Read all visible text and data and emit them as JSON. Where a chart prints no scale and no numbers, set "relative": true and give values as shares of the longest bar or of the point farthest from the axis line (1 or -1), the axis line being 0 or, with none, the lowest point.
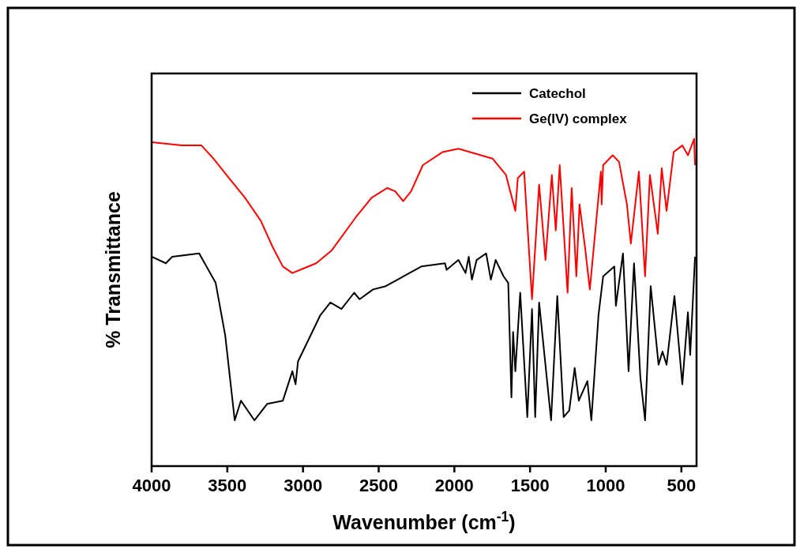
{
  "chart_data": {
    "type": "line",
    "relative": true,
    "xlabel": "Wavenumber (cm$^{-1}$)",
    "ylabel": "% Transmittance",
    "xlim": [
      4000,
      400
    ],
    "xticks": [
      4000,
      3500,
      3000,
      2500,
      2000,
      1500,
      1000,
      500
    ],
    "legend": "top right",
    "line_style": "solid",
    "series": [
      {
        "name": "Catechol",
        "color": "#000000",
        "x": [
          4000,
          3906,
          3864,
          3686,
          3577,
          3514,
          3451,
          3410,
          3321,
          3237,
          3133,
          3070,
          3049,
          3033,
          2939,
          2887,
          2819,
          2746,
          2662,
          2626,
          2537,
          2453,
          2297,
          2218,
          2062,
          2051,
          1973,
          1926,
          1905,
          1884,
          1853,
          1790,
          1759,
          1727,
          1675,
          1644,
          1623,
          1612,
          1597,
          1565,
          1518,
          1487,
          1466,
          1440,
          1361,
          1320,
          1278,
          1241,
          1205,
          1178,
          1121,
          1095,
          1048,
          1017,
          943,
          933,
          886,
          849,
          813,
          771,
          740,
          703,
          651,
          625,
          598,
          546,
          494,
          457,
          442,
          410
        ],
        "values": [
          0.64,
          0.62,
          0.64,
          0.65,
          0.56,
          0.4,
          0.14,
          0.2,
          0.14,
          0.19,
          0.2,
          0.29,
          0.25,
          0.32,
          0.41,
          0.46,
          0.5,
          0.48,
          0.53,
          0.51,
          0.54,
          0.55,
          0.59,
          0.61,
          0.62,
          0.6,
          0.63,
          0.59,
          0.64,
          0.57,
          0.63,
          0.65,
          0.57,
          0.63,
          0.58,
          0.56,
          0.21,
          0.41,
          0.29,
          0.53,
          0.15,
          0.48,
          0.15,
          0.5,
          0.14,
          0.52,
          0.15,
          0.17,
          0.3,
          0.2,
          0.26,
          0.14,
          0.46,
          0.58,
          0.61,
          0.49,
          0.65,
          0.29,
          0.62,
          0.27,
          0.14,
          0.55,
          0.31,
          0.35,
          0.31,
          0.52,
          0.25,
          0.47,
          0.34,
          0.64
        ]
      },
      {
        "name": "Ge(IV) complex",
        "color": "#ff0000",
        "x": [
          4000,
          3801,
          3671,
          3592,
          3488,
          3383,
          3279,
          3201,
          3133,
          3070,
          3018,
          2913,
          2809,
          2652,
          2547,
          2443,
          2391,
          2338,
          2286,
          2208,
          2077,
          1973,
          1748,
          1659,
          1597,
          1581,
          1539,
          1487,
          1440,
          1398,
          1356,
          1330,
          1304,
          1252,
          1225,
          1194,
          1173,
          1137,
          1105,
          1032,
          1027,
          1017,
          954,
          912,
          860,
          834,
          781,
          740,
          708,
          656,
          630,
          598,
          551,
          494,
          457,
          416,
          410
        ],
        "values": [
          0.99,
          0.98,
          0.98,
          0.94,
          0.88,
          0.82,
          0.75,
          0.67,
          0.61,
          0.59,
          0.6,
          0.62,
          0.66,
          0.76,
          0.82,
          0.85,
          0.84,
          0.81,
          0.84,
          0.92,
          0.96,
          0.97,
          0.94,
          0.89,
          0.78,
          0.88,
          0.9,
          0.51,
          0.86,
          0.63,
          0.89,
          0.72,
          0.92,
          0.53,
          0.85,
          0.58,
          0.8,
          0.67,
          0.54,
          0.9,
          0.8,
          0.92,
          0.95,
          0.93,
          0.8,
          0.68,
          0.9,
          0.58,
          0.89,
          0.71,
          0.91,
          0.78,
          0.96,
          0.98,
          0.95,
          1.0,
          0.92
        ]
      }
    ]
  }
}
